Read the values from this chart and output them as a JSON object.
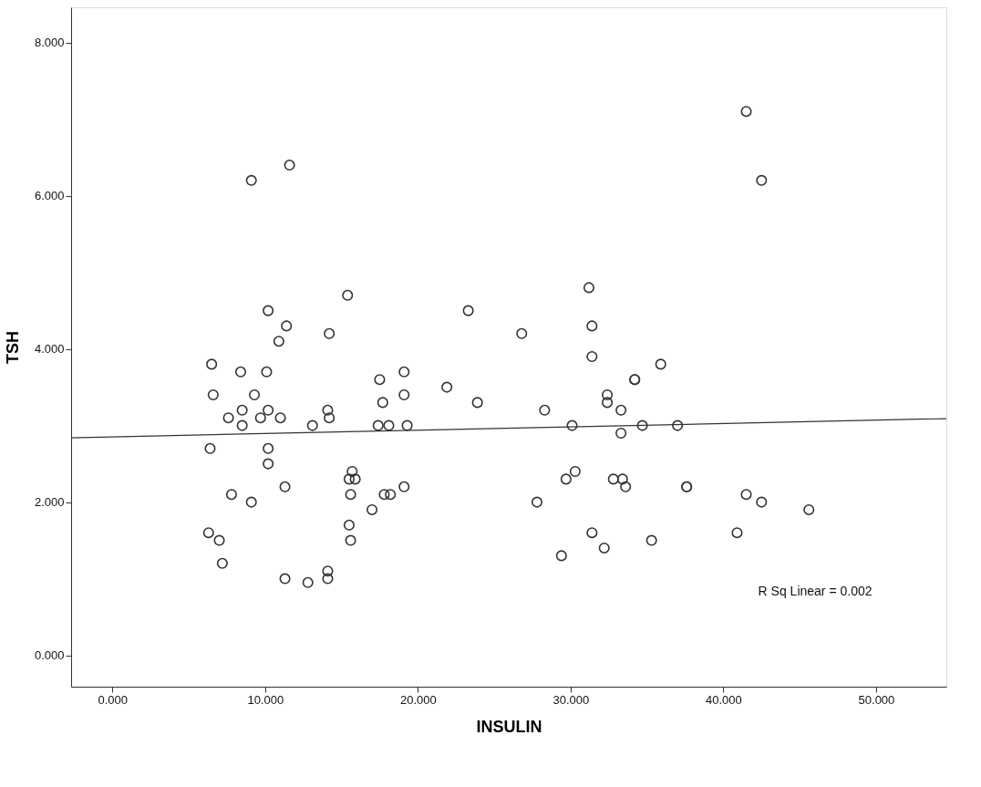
{
  "chart_data": {
    "type": "scatter",
    "xlabel": "INSULIN",
    "ylabel": "TSH",
    "xlim": [
      -2.7,
      54.6
    ],
    "ylim": [
      -0.41,
      8.46
    ],
    "xticks": [
      {
        "value": 0,
        "label": "0.000"
      },
      {
        "value": 10,
        "label": "10.000"
      },
      {
        "value": 20,
        "label": "20.000"
      },
      {
        "value": 30,
        "label": "30.000"
      },
      {
        "value": 40,
        "label": "40.000"
      },
      {
        "value": 50,
        "label": "50.000"
      }
    ],
    "yticks": [
      {
        "value": 0,
        "label": "0.000"
      },
      {
        "value": 2,
        "label": "2.000"
      },
      {
        "value": 4,
        "label": "4.000"
      },
      {
        "value": 6,
        "label": "6.000"
      },
      {
        "value": 8,
        "label": "8.000"
      }
    ],
    "grid": false,
    "annotations": [
      "R Sq Linear = 0.002"
    ],
    "series": [
      {
        "marker": "circle",
        "color": "#333333",
        "x": [
          6.5,
          8.4,
          10.1,
          6.6,
          9.3,
          8.5,
          10.2,
          7.6,
          9.7,
          11.0,
          8.5,
          13.1,
          14.1,
          14.2,
          6.4,
          10.2,
          10.2,
          11.3,
          7.8,
          9.1,
          6.3,
          7.0,
          7.2,
          11.3,
          12.8,
          14.1,
          14.1,
          15.7,
          15.5,
          15.9,
          15.6,
          17.0,
          15.5,
          15.6,
          10.9,
          9.1,
          11.6,
          15.4,
          11.4,
          10.2,
          14.2,
          31.2,
          23.3,
          31.4,
          26.8,
          31.4,
          35.9,
          34.2,
          34.2,
          17.5,
          19.1,
          21.9,
          17.7,
          19.1,
          23.9,
          32.4,
          32.4,
          28.3,
          33.3,
          17.4,
          18.1,
          19.3,
          30.1,
          34.7,
          33.3,
          19.1,
          17.8,
          18.2,
          30.3,
          29.7,
          32.8,
          33.4,
          33.6,
          27.8,
          31.4,
          32.2,
          35.3,
          29.4,
          41.5,
          42.5,
          37.0,
          37.6,
          37.6,
          41.5,
          42.5,
          45.6,
          40.9
        ],
        "values": [
          3.8,
          3.7,
          3.7,
          3.4,
          3.4,
          3.2,
          3.2,
          3.1,
          3.1,
          3.1,
          3.0,
          3.0,
          3.2,
          3.1,
          2.7,
          2.7,
          2.5,
          2.2,
          2.1,
          2.0,
          1.6,
          1.5,
          1.2,
          1.0,
          0.95,
          1.1,
          1.0,
          2.4,
          2.3,
          2.3,
          2.1,
          1.9,
          1.7,
          1.5,
          4.1,
          6.2,
          6.4,
          4.7,
          4.3,
          4.5,
          4.2,
          4.8,
          4.5,
          4.3,
          4.2,
          3.9,
          3.8,
          3.6,
          3.6,
          3.6,
          3.7,
          3.5,
          3.3,
          3.4,
          3.3,
          3.4,
          3.3,
          3.2,
          3.2,
          3.0,
          3.0,
          3.0,
          3.0,
          3.0,
          2.9,
          2.2,
          2.1,
          2.1,
          2.4,
          2.3,
          2.3,
          2.3,
          2.2,
          2.0,
          1.6,
          1.4,
          1.5,
          1.3,
          7.1,
          6.2,
          3.0,
          2.2,
          2.2,
          2.1,
          2.0,
          1.9,
          1.6
        ]
      },
      {
        "type": "line",
        "color": "#333333",
        "x": [
          -2.7,
          54.6
        ],
        "values": [
          2.84,
          3.09
        ]
      }
    ]
  }
}
